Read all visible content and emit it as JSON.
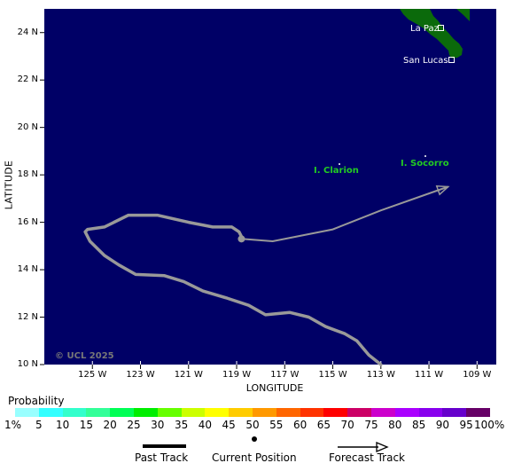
{
  "axes": {
    "ylabel": "LATITUDE",
    "xlabel": "LONGITUDE",
    "yticks": [
      "24 N",
      "22 N",
      "20 N",
      "18 N",
      "16 N",
      "14 N",
      "12 N",
      "10 N"
    ],
    "xticks": [
      "125 W",
      "123 W",
      "121 W",
      "119 W",
      "117 W",
      "115 W",
      "113 W",
      "111 W",
      "109 W"
    ],
    "lat_range": [
      10,
      25
    ],
    "lon_range": [
      -127,
      -108.2
    ]
  },
  "map": {
    "ocean_color": "#000066",
    "land_color": "#0b6a0b",
    "track_color": "#999999",
    "place_labels": {
      "la_paz": "La Paz",
      "san_lucas": "San Lucas",
      "clarion": "I. Clarion",
      "socorro": "I. Socorro"
    },
    "island_label_color": "#22cc22",
    "watermark": "© UCL 2025"
  },
  "storm": {
    "past_track": [
      [
        -113.0,
        10.0
      ],
      [
        -113.5,
        10.4
      ],
      [
        -114.0,
        11.0
      ],
      [
        -114.5,
        11.3
      ],
      [
        -115.3,
        11.6
      ],
      [
        -116.0,
        12.0
      ],
      [
        -116.8,
        12.2
      ],
      [
        -117.8,
        12.1
      ],
      [
        -118.5,
        12.5
      ],
      [
        -119.4,
        12.8
      ],
      [
        -120.4,
        13.1
      ],
      [
        -121.2,
        13.5
      ],
      [
        -122.0,
        13.75
      ],
      [
        -123.2,
        13.8
      ],
      [
        -123.9,
        14.2
      ],
      [
        -124.5,
        14.6
      ],
      [
        -125.1,
        15.2
      ],
      [
        -125.3,
        15.6
      ],
      [
        -125.2,
        15.7
      ],
      [
        -124.5,
        15.8
      ],
      [
        -123.5,
        16.3
      ],
      [
        -122.3,
        16.3
      ],
      [
        -121.0,
        16.0
      ],
      [
        -120.0,
        15.8
      ],
      [
        -119.2,
        15.8
      ],
      [
        -118.9,
        15.6
      ],
      [
        -118.8,
        15.4
      ]
    ],
    "current_position": [
      -118.8,
      15.3
    ],
    "forecast_track": [
      [
        -118.8,
        15.3
      ],
      [
        -117.5,
        15.2
      ],
      [
        -115.0,
        15.7
      ],
      [
        -113.0,
        16.5
      ],
      [
        -110.2,
        17.5
      ]
    ]
  },
  "legend": {
    "probability_title": "Probability",
    "bins": [
      "1%",
      "5",
      "10",
      "15",
      "20",
      "25",
      "30",
      "35",
      "40",
      "45",
      "50",
      "55",
      "60",
      "65",
      "70",
      "75",
      "80",
      "85",
      "90",
      "95",
      "100%"
    ],
    "colors": [
      "#99ffff",
      "#33ffff",
      "#33ffcc",
      "#33ff99",
      "#00ff55",
      "#00ee00",
      "#66ff00",
      "#ccff00",
      "#ffff00",
      "#ffcc00",
      "#ff9900",
      "#ff6600",
      "#ff3300",
      "#ff0000",
      "#cc0066",
      "#cc00cc",
      "#aa00ff",
      "#8800ee",
      "#6600cc",
      "#660066"
    ],
    "past_track_label": "Past Track",
    "current_position_label": "Current Position",
    "forecast_track_label": "Forecast Track"
  }
}
